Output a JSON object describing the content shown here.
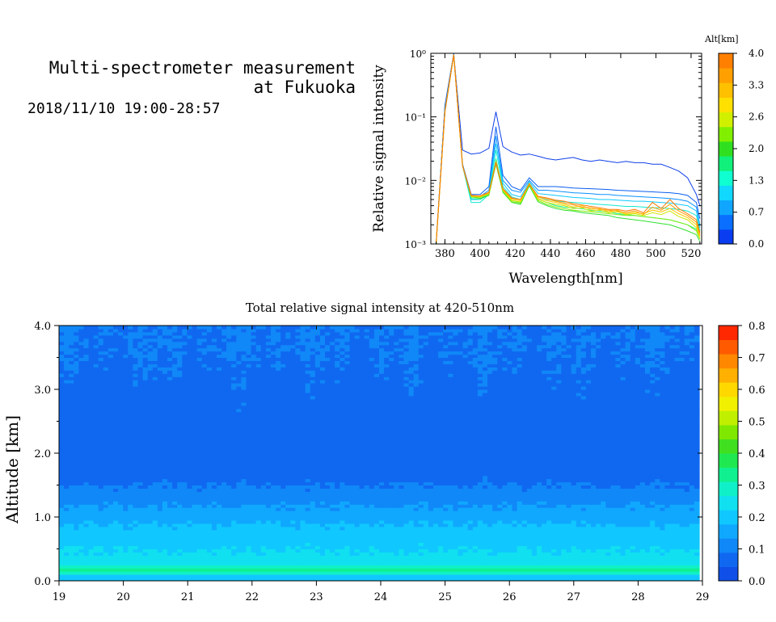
{
  "header": {
    "title_line1": "Multi-spectrometer measurement",
    "title_line2": "at Fukuoka",
    "datetime": "2018/11/10 19:00-28:57"
  },
  "chart_data": [
    {
      "type": "line",
      "title": "",
      "xlabel": "Wavelength[nm]",
      "ylabel": "Relative signal intensity",
      "xlim": [
        372,
        526
      ],
      "ylim": [
        0.001,
        1
      ],
      "yscale": "log",
      "xticks": [
        "380",
        "400",
        "420",
        "440",
        "460",
        "480",
        "500",
        "520"
      ],
      "yticks": [
        "10⁻³",
        "10⁻²",
        "10⁻¹",
        "10⁰"
      ],
      "x": [
        375,
        380,
        385,
        390,
        395,
        400,
        405,
        409,
        413,
        418,
        423,
        428,
        433,
        438,
        443,
        448,
        453,
        458,
        463,
        468,
        473,
        478,
        483,
        488,
        493,
        498,
        503,
        508,
        513,
        518,
        523,
        525
      ],
      "colorbar": {
        "label": "Alt[km]",
        "ticks": [
          "0.0",
          "0.7",
          "1.3",
          "2.0",
          "2.6",
          "3.3",
          "4.0"
        ],
        "colors": [
          "#0a3cf0",
          "#0a6eff",
          "#10a6ff",
          "#10d8ff",
          "#10ffd0",
          "#10f07a",
          "#30e020",
          "#80f000",
          "#d0f000",
          "#ffe000",
          "#ffc000",
          "#ffa000",
          "#ff8000"
        ]
      },
      "series": [
        {
          "color": "#1040e8",
          "values": [
            0.001,
            0.15,
            0.98,
            0.03,
            0.026,
            0.027,
            0.032,
            0.12,
            0.034,
            0.028,
            0.025,
            0.026,
            0.024,
            0.022,
            0.021,
            0.022,
            0.023,
            0.021,
            0.02,
            0.021,
            0.02,
            0.019,
            0.02,
            0.019,
            0.019,
            0.018,
            0.018,
            0.016,
            0.014,
            0.011,
            0.006,
            0.004
          ]
        },
        {
          "color": "#0a5ef0",
          "values": [
            0.001,
            0.14,
            0.97,
            0.018,
            0.006,
            0.006,
            0.008,
            0.07,
            0.012,
            0.008,
            0.007,
            0.011,
            0.008,
            0.008,
            0.008,
            0.0078,
            0.0076,
            0.0075,
            0.0074,
            0.0073,
            0.0072,
            0.007,
            0.0069,
            0.0068,
            0.0067,
            0.0066,
            0.0065,
            0.0064,
            0.0062,
            0.0058,
            0.0045,
            0.0025
          ]
        },
        {
          "color": "#0a90ff",
          "values": [
            0.001,
            0.13,
            0.96,
            0.018,
            0.0055,
            0.0056,
            0.007,
            0.05,
            0.01,
            0.007,
            0.0065,
            0.01,
            0.007,
            0.007,
            0.0068,
            0.0066,
            0.0064,
            0.0063,
            0.0062,
            0.006,
            0.006,
            0.0058,
            0.0057,
            0.0056,
            0.0055,
            0.0054,
            0.0053,
            0.0052,
            0.005,
            0.0047,
            0.0038,
            0.002
          ]
        },
        {
          "color": "#10c8ff",
          "values": [
            0.001,
            0.13,
            0.95,
            0.017,
            0.005,
            0.005,
            0.0065,
            0.038,
            0.009,
            0.006,
            0.0055,
            0.0095,
            0.0062,
            0.006,
            0.0058,
            0.0056,
            0.0054,
            0.0053,
            0.0052,
            0.005,
            0.005,
            0.0049,
            0.0048,
            0.0047,
            0.0047,
            0.0046,
            0.0045,
            0.0044,
            0.0042,
            0.004,
            0.0033,
            0.0018
          ]
        },
        {
          "color": "#10e8d0",
          "values": [
            0.001,
            0.12,
            0.95,
            0.017,
            0.0045,
            0.0045,
            0.006,
            0.03,
            0.008,
            0.0055,
            0.005,
            0.009,
            0.0055,
            0.005,
            0.0048,
            0.0046,
            0.0045,
            0.0044,
            0.0043,
            0.0042,
            0.0041,
            0.004,
            0.0039,
            0.0039,
            0.0038,
            0.0037,
            0.0037,
            0.0036,
            0.0035,
            0.0033,
            0.0028,
            0.0016
          ]
        },
        {
          "color": "#10f090",
          "values": [
            0.001,
            0.12,
            0.95,
            0.017,
            0.0052,
            0.005,
            0.006,
            0.022,
            0.007,
            0.0048,
            0.0045,
            0.0085,
            0.005,
            0.0045,
            0.004,
            0.0038,
            0.0037,
            0.0036,
            0.0034,
            0.0033,
            0.0032,
            0.003,
            0.0029,
            0.0028,
            0.0027,
            0.0026,
            0.0025,
            0.0024,
            0.0022,
            0.002,
            0.0017,
            0.0012
          ]
        },
        {
          "color": "#30e030",
          "values": [
            0.001,
            0.12,
            0.95,
            0.017,
            0.0055,
            0.0052,
            0.0058,
            0.018,
            0.0065,
            0.0045,
            0.0042,
            0.0082,
            0.0046,
            0.004,
            0.0036,
            0.0034,
            0.0033,
            0.0031,
            0.003,
            0.0029,
            0.0028,
            0.0026,
            0.0025,
            0.0024,
            0.0023,
            0.0022,
            0.0021,
            0.002,
            0.0018,
            0.0016,
            0.0014,
            0.0011
          ]
        },
        {
          "color": "#80ee10",
          "values": [
            0.001,
            0.12,
            0.95,
            0.017,
            0.0055,
            0.0054,
            0.006,
            0.019,
            0.0068,
            0.0046,
            0.0044,
            0.0085,
            0.0048,
            0.0042,
            0.0038,
            0.0036,
            0.0034,
            0.0033,
            0.0032,
            0.0031,
            0.003,
            0.0029,
            0.0028,
            0.0028,
            0.0027,
            0.0026,
            0.0025,
            0.0024,
            0.0022,
            0.002,
            0.0016,
            0.0012
          ]
        },
        {
          "color": "#d0e800",
          "values": [
            0.001,
            0.12,
            0.95,
            0.017,
            0.0056,
            0.0055,
            0.0062,
            0.02,
            0.007,
            0.0048,
            0.0046,
            0.0088,
            0.005,
            0.0045,
            0.0042,
            0.004,
            0.0036,
            0.0037,
            0.0033,
            0.0034,
            0.0031,
            0.0032,
            0.0029,
            0.003,
            0.0028,
            0.0031,
            0.0029,
            0.0033,
            0.0027,
            0.0024,
            0.0018,
            0.0012
          ]
        },
        {
          "color": "#ffc800",
          "values": [
            0.001,
            0.12,
            0.95,
            0.017,
            0.0057,
            0.0056,
            0.0063,
            0.02,
            0.0072,
            0.005,
            0.0048,
            0.009,
            0.0052,
            0.0048,
            0.0045,
            0.0042,
            0.0038,
            0.004,
            0.0035,
            0.0036,
            0.0032,
            0.0034,
            0.003,
            0.0031,
            0.003,
            0.0034,
            0.0032,
            0.0036,
            0.003,
            0.0026,
            0.002,
            0.0013
          ]
        },
        {
          "color": "#ffa000",
          "values": [
            0.001,
            0.12,
            0.95,
            0.017,
            0.0057,
            0.0057,
            0.0064,
            0.019,
            0.0073,
            0.0052,
            0.005,
            0.0088,
            0.0055,
            0.0051,
            0.0047,
            0.0044,
            0.0041,
            0.0038,
            0.0037,
            0.0035,
            0.0034,
            0.0033,
            0.0031,
            0.0033,
            0.0029,
            0.0038,
            0.0034,
            0.0042,
            0.0033,
            0.0028,
            0.0022,
            0.0014
          ]
        },
        {
          "color": "#ff7a00",
          "values": [
            0.001,
            0.12,
            0.95,
            0.017,
            0.0058,
            0.0057,
            0.0065,
            0.019,
            0.0074,
            0.0053,
            0.005,
            0.0086,
            0.0056,
            0.0053,
            0.0049,
            0.0047,
            0.0043,
            0.0041,
            0.0039,
            0.0037,
            0.0035,
            0.0035,
            0.0033,
            0.0035,
            0.0031,
            0.0045,
            0.0036,
            0.005,
            0.0036,
            0.003,
            0.0024,
            0.0015
          ]
        }
      ]
    },
    {
      "type": "heatmap",
      "title": "Total relative signal intensity at 420-510nm",
      "xlabel": "",
      "ylabel": "Altitude [km]",
      "xlim": [
        19,
        29
      ],
      "ylim": [
        0,
        4
      ],
      "xticks": [
        "19",
        "20",
        "21",
        "22",
        "23",
        "24",
        "25",
        "26",
        "27",
        "28",
        "29"
      ],
      "yticks": [
        "0.0",
        "1.0",
        "2.0",
        "3.0",
        "4.0"
      ],
      "data_end_x": 28.95,
      "colorbar": {
        "ticks": [
          "0.0",
          "0.1",
          "0.2",
          "0.3",
          "0.4",
          "0.5",
          "0.6",
          "0.7",
          "0.8"
        ],
        "range": [
          0,
          0.8
        ],
        "colors": [
          "#1050e8",
          "#1068f0",
          "#1088f8",
          "#10a8ff",
          "#10c8ff",
          "#10e0f0",
          "#10f0c8",
          "#10f090",
          "#20e850",
          "#40e020",
          "#80e800",
          "#c0f000",
          "#f0f000",
          "#ffd800",
          "#ffb000",
          "#ff8800",
          "#ff5a00",
          "#ff2800"
        ]
      },
      "profile": {
        "altitude": [
          0.1,
          0.15,
          0.2,
          0.3,
          0.5,
          0.8,
          1.0,
          1.2,
          1.4,
          1.6,
          2.0,
          2.5,
          3.0,
          3.5,
          4.0
        ],
        "intensity": [
          0.22,
          0.4,
          0.3,
          0.24,
          0.22,
          0.19,
          0.16,
          0.13,
          0.1,
          0.08,
          0.065,
          0.07,
          0.075,
          0.085,
          0.09
        ]
      }
    }
  ]
}
